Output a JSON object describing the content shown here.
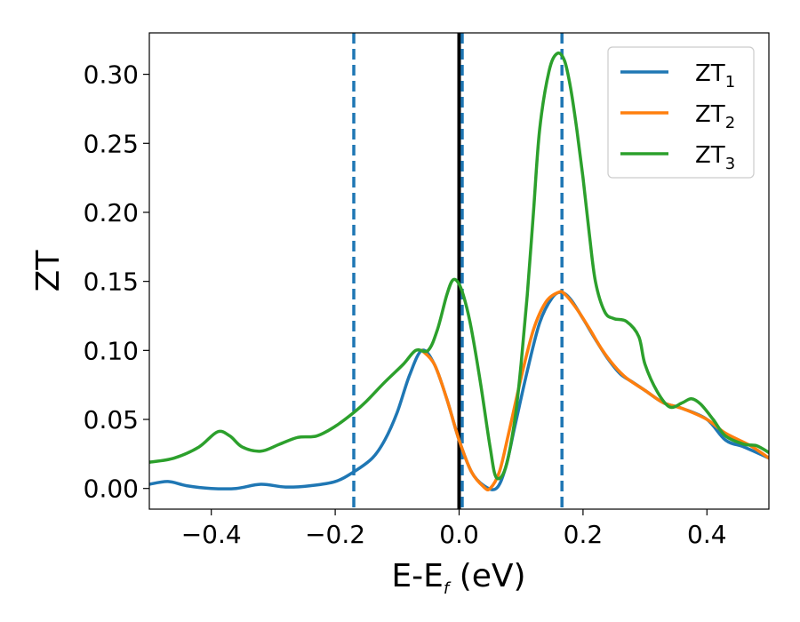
{
  "chart_data": {
    "type": "line",
    "xlabel": "E-E",
    "xlabel_sub": "f",
    "xlabel_unit": " (eV)",
    "ylabel": "ZT",
    "xlim": [
      -0.5,
      0.5
    ],
    "ylim": [
      -0.015,
      0.33
    ],
    "x_ticks": [
      -0.4,
      -0.2,
      0.0,
      0.2,
      0.4
    ],
    "x_tick_labels": [
      "−0.4",
      "−0.2",
      "0.0",
      "0.2",
      "0.4"
    ],
    "y_ticks": [
      0.0,
      0.05,
      0.1,
      0.15,
      0.2,
      0.25,
      0.3
    ],
    "y_tick_labels": [
      "0.00",
      "0.05",
      "0.10",
      "0.15",
      "0.20",
      "0.25",
      "0.30"
    ],
    "grid": false,
    "legend_position": "top-right",
    "vertical_lines": [
      {
        "x": 0.0,
        "style": "solid",
        "color": "#000000"
      },
      {
        "x": -0.17,
        "style": "dashed",
        "color": "#1f77b4"
      },
      {
        "x": 0.005,
        "style": "dashed",
        "color": "#1f77b4"
      },
      {
        "x": 0.166,
        "style": "dashed",
        "color": "#1f77b4"
      }
    ],
    "series": [
      {
        "name": "ZT",
        "name_sub": "1",
        "color": "#1f77b4",
        "points": [
          [
            -0.5,
            0.003
          ],
          [
            -0.47,
            0.005
          ],
          [
            -0.44,
            0.002
          ],
          [
            -0.4,
            0.0
          ],
          [
            -0.36,
            0.0
          ],
          [
            -0.32,
            0.003
          ],
          [
            -0.28,
            0.001
          ],
          [
            -0.24,
            0.002
          ],
          [
            -0.2,
            0.005
          ],
          [
            -0.17,
            0.012
          ],
          [
            -0.14,
            0.022
          ],
          [
            -0.12,
            0.035
          ],
          [
            -0.1,
            0.055
          ],
          [
            -0.08,
            0.082
          ],
          [
            -0.06,
            0.1
          ],
          [
            -0.04,
            0.09
          ],
          [
            -0.02,
            0.065
          ],
          [
            0.0,
            0.035
          ],
          [
            0.02,
            0.012
          ],
          [
            0.04,
            0.002
          ],
          [
            0.06,
            0.0
          ],
          [
            0.075,
            0.015
          ],
          [
            0.09,
            0.045
          ],
          [
            0.11,
            0.085
          ],
          [
            0.13,
            0.12
          ],
          [
            0.15,
            0.138
          ],
          [
            0.165,
            0.142
          ],
          [
            0.18,
            0.137
          ],
          [
            0.2,
            0.123
          ],
          [
            0.22,
            0.108
          ],
          [
            0.24,
            0.094
          ],
          [
            0.26,
            0.083
          ],
          [
            0.28,
            0.077
          ],
          [
            0.3,
            0.071
          ],
          [
            0.33,
            0.062
          ],
          [
            0.36,
            0.058
          ],
          [
            0.4,
            0.05
          ],
          [
            0.43,
            0.035
          ],
          [
            0.46,
            0.03
          ],
          [
            0.5,
            0.022
          ]
        ]
      },
      {
        "name": "ZT",
        "name_sub": "2",
        "color": "#ff7f0e",
        "points": [
          [
            -0.06,
            0.1
          ],
          [
            -0.04,
            0.09
          ],
          [
            -0.02,
            0.065
          ],
          [
            0.0,
            0.035
          ],
          [
            0.02,
            0.012
          ],
          [
            0.04,
            0.001
          ],
          [
            0.05,
            0.0
          ],
          [
            0.065,
            0.012
          ],
          [
            0.08,
            0.04
          ],
          [
            0.1,
            0.08
          ],
          [
            0.12,
            0.115
          ],
          [
            0.14,
            0.135
          ],
          [
            0.16,
            0.142
          ],
          [
            0.17,
            0.141
          ],
          [
            0.19,
            0.13
          ],
          [
            0.21,
            0.116
          ],
          [
            0.23,
            0.101
          ],
          [
            0.25,
            0.089
          ],
          [
            0.27,
            0.08
          ],
          [
            0.3,
            0.071
          ],
          [
            0.33,
            0.062
          ],
          [
            0.36,
            0.058
          ],
          [
            0.4,
            0.05
          ],
          [
            0.43,
            0.04
          ],
          [
            0.47,
            0.031
          ],
          [
            0.5,
            0.022
          ]
        ]
      },
      {
        "name": "ZT",
        "name_sub": "3",
        "color": "#2ca02c",
        "points": [
          [
            -0.5,
            0.019
          ],
          [
            -0.46,
            0.022
          ],
          [
            -0.42,
            0.03
          ],
          [
            -0.39,
            0.041
          ],
          [
            -0.37,
            0.038
          ],
          [
            -0.35,
            0.03
          ],
          [
            -0.32,
            0.027
          ],
          [
            -0.29,
            0.032
          ],
          [
            -0.26,
            0.037
          ],
          [
            -0.23,
            0.038
          ],
          [
            -0.2,
            0.045
          ],
          [
            -0.17,
            0.055
          ],
          [
            -0.15,
            0.063
          ],
          [
            -0.12,
            0.077
          ],
          [
            -0.09,
            0.09
          ],
          [
            -0.07,
            0.1
          ],
          [
            -0.05,
            0.1
          ],
          [
            -0.035,
            0.115
          ],
          [
            -0.02,
            0.14
          ],
          [
            -0.01,
            0.151
          ],
          [
            0.0,
            0.148
          ],
          [
            0.01,
            0.135
          ],
          [
            0.02,
            0.115
          ],
          [
            0.035,
            0.075
          ],
          [
            0.05,
            0.03
          ],
          [
            0.06,
            0.008
          ],
          [
            0.075,
            0.015
          ],
          [
            0.09,
            0.05
          ],
          [
            0.1,
            0.09
          ],
          [
            0.11,
            0.14
          ],
          [
            0.12,
            0.2
          ],
          [
            0.13,
            0.26
          ],
          [
            0.145,
            0.302
          ],
          [
            0.158,
            0.315
          ],
          [
            0.17,
            0.31
          ],
          [
            0.18,
            0.29
          ],
          [
            0.19,
            0.26
          ],
          [
            0.2,
            0.225
          ],
          [
            0.21,
            0.185
          ],
          [
            0.22,
            0.15
          ],
          [
            0.235,
            0.128
          ],
          [
            0.25,
            0.123
          ],
          [
            0.27,
            0.121
          ],
          [
            0.29,
            0.11
          ],
          [
            0.3,
            0.09
          ],
          [
            0.32,
            0.07
          ],
          [
            0.34,
            0.059
          ],
          [
            0.36,
            0.062
          ],
          [
            0.375,
            0.065
          ],
          [
            0.39,
            0.061
          ],
          [
            0.41,
            0.05
          ],
          [
            0.43,
            0.038
          ],
          [
            0.46,
            0.032
          ],
          [
            0.48,
            0.031
          ],
          [
            0.5,
            0.026
          ]
        ]
      }
    ]
  }
}
